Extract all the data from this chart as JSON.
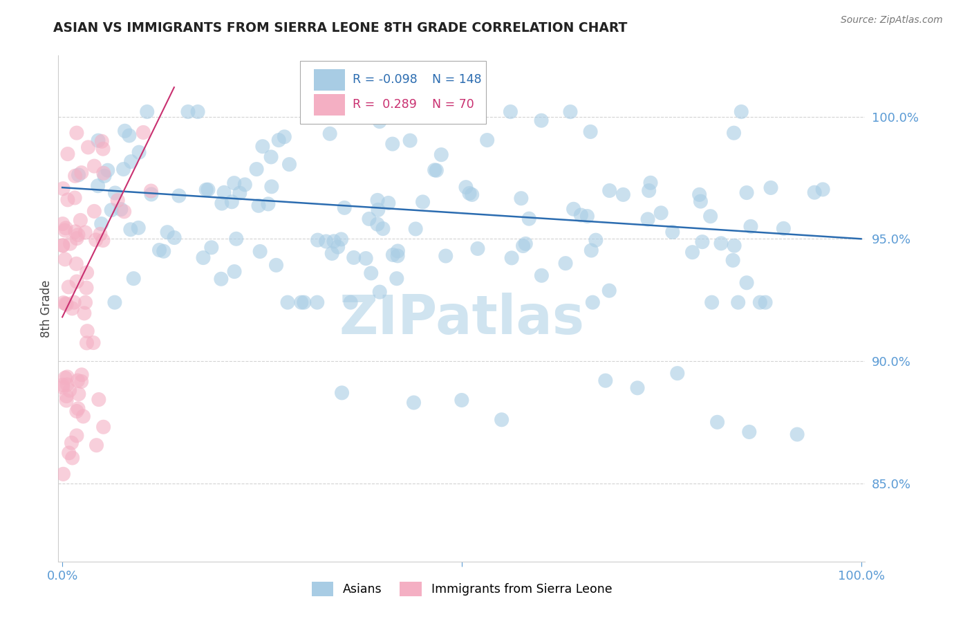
{
  "title": "ASIAN VS IMMIGRANTS FROM SIERRA LEONE 8TH GRADE CORRELATION CHART",
  "source": "Source: ZipAtlas.com",
  "ylabel": "8th Grade",
  "legend_blue_R": "-0.098",
  "legend_blue_N": "148",
  "legend_pink_R": "0.289",
  "legend_pink_N": "70",
  "blue_color": "#a8cce4",
  "pink_color": "#f4afc3",
  "blue_line_color": "#2b6cb0",
  "pink_line_color": "#c93070",
  "title_color": "#222222",
  "axis_color": "#5b9bd5",
  "grid_color": "#c8c8c8",
  "watermark_color": "#d0e4f0",
  "background_color": "#ffffff",
  "ylim": [
    0.818,
    1.025
  ],
  "xlim": [
    -0.005,
    1.005
  ],
  "ytick_vals": [
    0.85,
    0.9,
    0.95,
    1.0
  ],
  "ytick_labels": [
    "85.0%",
    "90.0%",
    "95.0%",
    "100.0%"
  ],
  "xtick_vals": [
    0.0,
    0.5,
    1.0
  ],
  "xtick_labels": [
    "0.0%",
    "",
    "100.0%"
  ],
  "blue_trend_x": [
    0.0,
    1.0
  ],
  "blue_trend_y": [
    0.971,
    0.95
  ],
  "pink_trend_x": [
    0.0,
    0.14
  ],
  "pink_trend_y": [
    0.918,
    1.012
  ]
}
